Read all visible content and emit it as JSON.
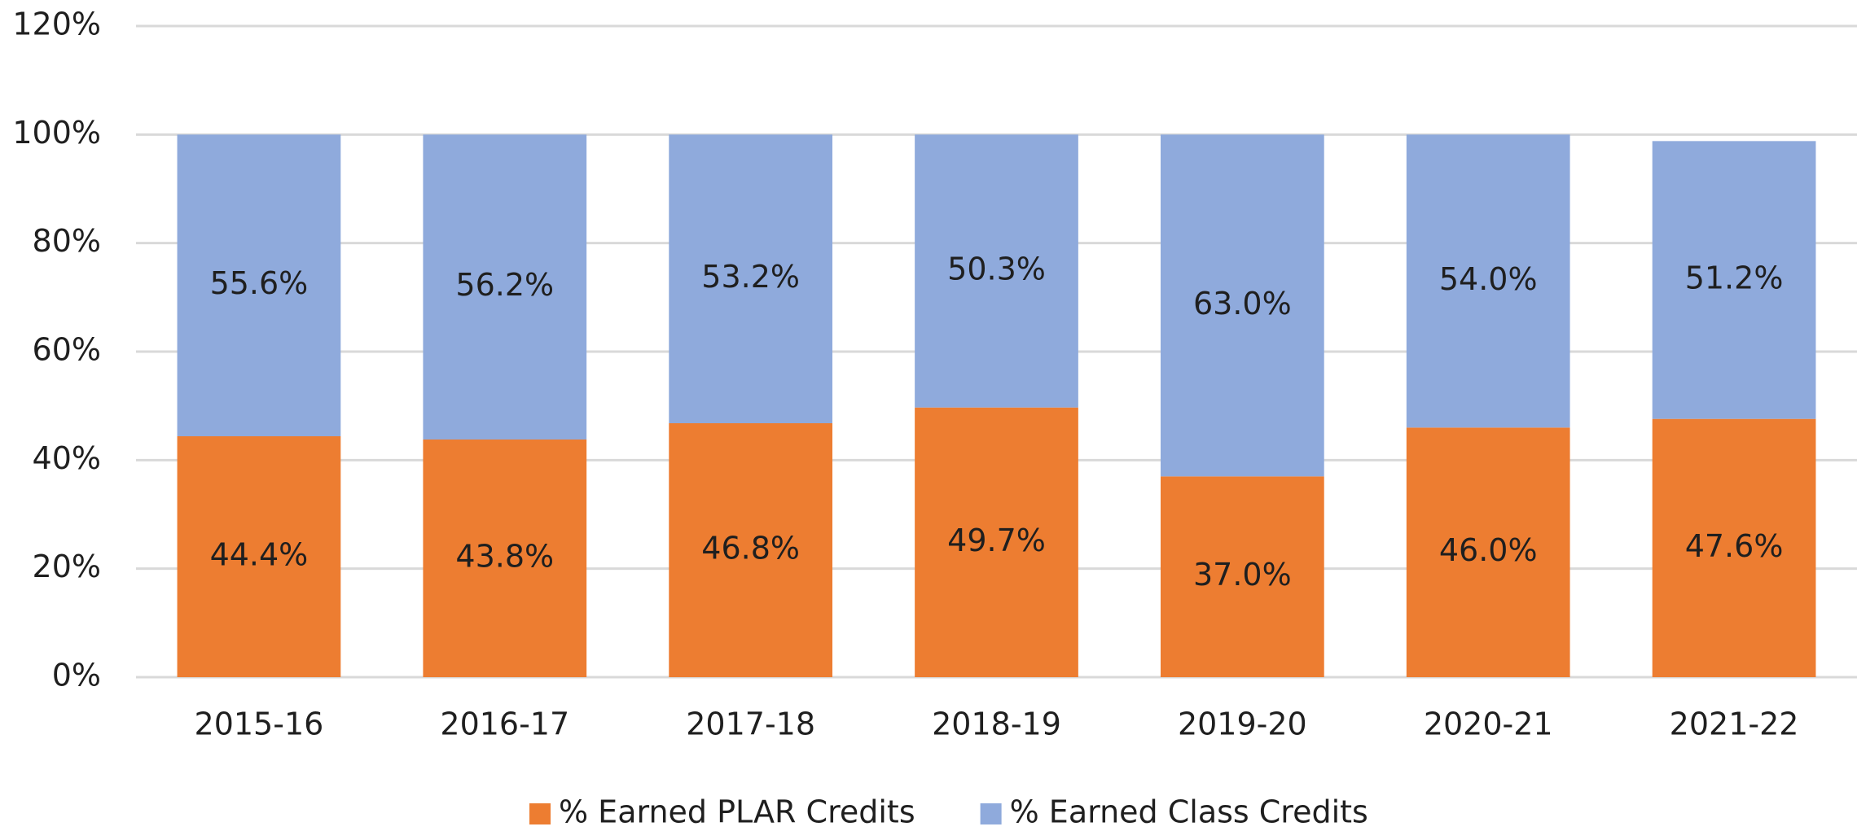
{
  "chart_data": {
    "type": "stacked_bar",
    "categories": [
      "2015-16",
      "2016-17",
      "2017-18",
      "2018-19",
      "2019-20",
      "2020-21",
      "2021-22"
    ],
    "series": [
      {
        "name": "% Earned PLAR Credits",
        "color": "#ed7d31",
        "values": [
          44.4,
          43.8,
          46.8,
          49.7,
          37.0,
          46.0,
          47.6
        ],
        "value_labels": [
          "44.4%",
          "43.8%",
          "46.8%",
          "49.7%",
          "37.0%",
          "46.0%",
          "47.6%"
        ]
      },
      {
        "name": "% Earned Class Credits",
        "color": "#8faadc",
        "values": [
          55.6,
          56.2,
          53.2,
          50.3,
          63.0,
          54.0,
          51.2
        ],
        "value_labels": [
          "55.6%",
          "56.2%",
          "53.2%",
          "50.3%",
          "63.0%",
          "54.0%",
          "51.2%"
        ]
      }
    ],
    "ylim": [
      0,
      120
    ],
    "yticks": [
      {
        "value": 0,
        "label": "0%"
      },
      {
        "value": 20,
        "label": "20%"
      },
      {
        "value": 40,
        "label": "40%"
      },
      {
        "value": 60,
        "label": "60%"
      },
      {
        "value": 80,
        "label": "80%"
      },
      {
        "value": 100,
        "label": "100%"
      },
      {
        "value": 120,
        "label": "120%"
      }
    ],
    "grid": true,
    "legend": "bottom"
  }
}
